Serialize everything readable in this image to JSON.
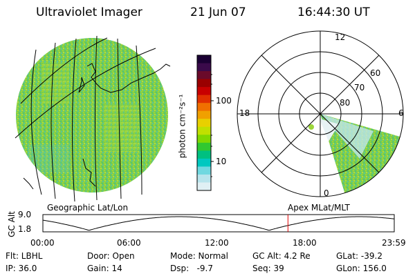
{
  "header": {
    "instrument": "Ultraviolet Imager",
    "date": "21 Jun 07",
    "time": "16:44:30 UT"
  },
  "left_panel": {
    "label": "Geographic Lat/Lon"
  },
  "right_panel": {
    "label": "Apex MLat/MLT",
    "mlt_labels": {
      "top": "12",
      "left": "18",
      "right": "6",
      "bottom": "0"
    },
    "lat_labels": [
      "60",
      "70",
      "80"
    ]
  },
  "colorbar": {
    "unit_label": "photon cm⁻²s⁻¹",
    "ticks": [
      "100",
      "10"
    ],
    "colors": [
      "#1a0033",
      "#3a0a4a",
      "#6a0a2a",
      "#9a0000",
      "#c80000",
      "#e03000",
      "#f07000",
      "#f0a000",
      "#e8d000",
      "#c0e000",
      "#80d800",
      "#30c830",
      "#00c080",
      "#00c8c0",
      "#70d8e0",
      "#b8e4ec",
      "#e0f0f4"
    ]
  },
  "timeline": {
    "y_label": "GC Alt",
    "y_ticks": [
      "9.0",
      "1.8"
    ],
    "x_ticks": [
      "00:00",
      "06:00",
      "12:00",
      "18:00",
      "23:59"
    ],
    "current_hours": 16.74,
    "marker_color": "#e00000"
  },
  "info": {
    "filter": "Flt: LBHL",
    "ip": "IP: 36.0",
    "door": "Door: Open",
    "gain": "Gain: 14",
    "mode": "Mode: Normal",
    "dsp": "Dsp:   -9.7",
    "gc_alt": "GC Alt: 4.2 Re",
    "seq": "Seq: 39",
    "glat": "GLat: -39.2",
    "glon": "GLon: 156.0"
  }
}
